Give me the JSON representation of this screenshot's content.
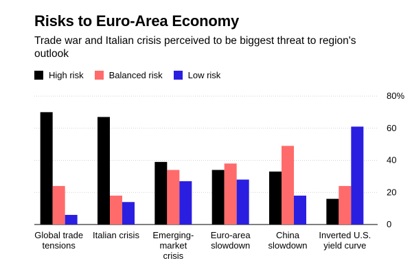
{
  "title": "Risks to Euro-Area Economy",
  "subtitle": "Trade war and Italian crisis perceived to be biggest threat to region's outlook",
  "legend": [
    {
      "label": "High risk",
      "color": "#000000"
    },
    {
      "label": "Balanced risk",
      "color": "#ff6b6b"
    },
    {
      "label": "Low risk",
      "color": "#2a1fe0"
    }
  ],
  "chart_data": {
    "type": "bar",
    "title": "Risks to Euro-Area Economy",
    "subtitle": "Trade war and Italian crisis perceived to be biggest threat to region's outlook",
    "categories": [
      [
        "Global trade",
        "tensions"
      ],
      [
        "Italian crisis"
      ],
      [
        "Emerging-",
        "market",
        "crisis"
      ],
      [
        "Euro-area",
        "slowdown"
      ],
      [
        "China",
        "slowdown"
      ],
      [
        "Inverted U.S.",
        "yield curve"
      ]
    ],
    "series": [
      {
        "name": "High risk",
        "color": "#000000",
        "values": [
          70,
          67,
          39,
          34,
          33,
          16
        ]
      },
      {
        "name": "Balanced risk",
        "color": "#ff6b6b",
        "values": [
          24,
          18,
          34,
          38,
          49,
          24
        ]
      },
      {
        "name": "Low risk",
        "color": "#2a1fe0",
        "values": [
          6,
          14,
          27,
          28,
          18,
          61
        ]
      }
    ],
    "ylim": [
      0,
      80
    ],
    "yticks": [
      0,
      20,
      40,
      60,
      80
    ],
    "ytick_labels": [
      "0",
      "20",
      "40",
      "60",
      "80%"
    ],
    "grid": true,
    "legend_position": "top-left"
  }
}
